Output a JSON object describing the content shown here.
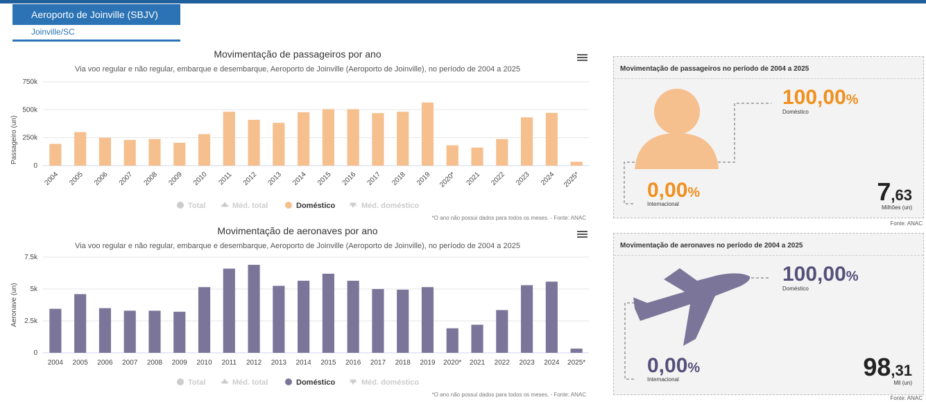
{
  "header": {
    "title": "Aeroporto de Joinville (SBJV)",
    "city": "Joinville/SC"
  },
  "colors": {
    "passengers": "#f5bf8e",
    "aircraft": "#7b7699",
    "accent": "#f0901e",
    "aircraft_dark": "#55507a",
    "brand": "#2b73b4"
  },
  "legend": {
    "total": "Total",
    "med_total": "Méd. total",
    "domestico": "Doméstico",
    "med_domestico": "Méd. doméstico"
  },
  "note": "*O ano não possui dados para todos os meses. - Fonte: ANAC",
  "chart_data": [
    {
      "type": "bar",
      "title": "Movimentação de passageiros por ano",
      "subtitle": "Via voo regular e não regular, embarque e desembarque, Aeroporto de Joinville (Aeroporto de Joinville), no período de 2004 a 2025",
      "ylabel": "Passageiro (un)",
      "ylim": [
        0,
        750000
      ],
      "yticks": [
        {
          "v": 0,
          "label": "0"
        },
        {
          "v": 250000,
          "label": "250k"
        },
        {
          "v": 500000,
          "label": "500k"
        },
        {
          "v": 750000,
          "label": "750k"
        }
      ],
      "categories": [
        "2004",
        "2005",
        "2006",
        "2007",
        "2008",
        "2009",
        "2010",
        "2011",
        "2012",
        "2013",
        "2014",
        "2015",
        "2016",
        "2017",
        "2018",
        "2019",
        "2020*",
        "2021",
        "2022",
        "2023",
        "2024",
        "2025*"
      ],
      "series": [
        {
          "name": "Doméstico",
          "values": [
            195000,
            300000,
            250000,
            230000,
            238000,
            205000,
            282000,
            482000,
            410000,
            383000,
            478000,
            505000,
            505000,
            470000,
            482000,
            565000,
            182000,
            162000,
            238000,
            432000,
            472000,
            35000
          ]
        }
      ],
      "grid": true
    },
    {
      "type": "bar",
      "title": "Movimentação de aeronaves por ano",
      "subtitle": "Via voo regular e não regular, embarque e desembarque, Aeroporto de Joinville (Aeroporto de Joinville), no período de 2004 a 2025",
      "ylabel": "Aeronave (un)",
      "ylim": [
        0,
        7500
      ],
      "yticks": [
        {
          "v": 0,
          "label": "0"
        },
        {
          "v": 2500,
          "label": "2.5k"
        },
        {
          "v": 5000,
          "label": "5k"
        },
        {
          "v": 7500,
          "label": "7.5k"
        }
      ],
      "categories": [
        "2004",
        "2005",
        "2006",
        "2007",
        "2008",
        "2009",
        "2010",
        "2011",
        "2012",
        "2013",
        "2014",
        "2015",
        "2016",
        "2017",
        "2018",
        "2019",
        "2020*",
        "2021",
        "2022",
        "2023",
        "2024",
        "2025*"
      ],
      "series": [
        {
          "name": "Doméstico",
          "values": [
            3450,
            4600,
            3500,
            3300,
            3300,
            3220,
            5150,
            6600,
            6900,
            5250,
            5650,
            6200,
            5650,
            5000,
            4950,
            5150,
            1920,
            2200,
            3350,
            5300,
            5580,
            330
          ]
        }
      ],
      "grid": true
    }
  ],
  "panels": {
    "passengers": {
      "title": "Movimentação de passageiros no período de 2004 a 2025",
      "dom_int": "100,00",
      "dom_label": "Doméstico",
      "int_int": "0,00",
      "int_label": "Internacional",
      "pct": "%",
      "total_int": "7",
      "total_dec": ",63",
      "total_unit": "Milhões (un)",
      "fonte": "Fonte: ANAC",
      "icon": "person-icon"
    },
    "aircraft": {
      "title": "Movimentação de aeronaves no período de 2004 a 2025",
      "dom_int": "100,00",
      "dom_label": "Doméstico",
      "int_int": "0,00",
      "int_label": "Internacional",
      "pct": "%",
      "total_int": "98",
      "total_dec": ",31",
      "total_unit": "Mil (un)",
      "fonte": "Fonte: ANAC",
      "icon": "airplane-icon"
    }
  }
}
